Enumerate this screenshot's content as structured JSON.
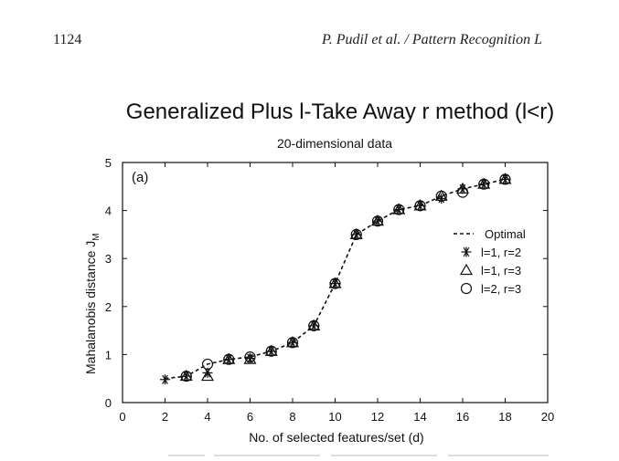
{
  "header": {
    "page_number": "1124",
    "running_title": "P. Pudil et al. / Pattern Recognition L"
  },
  "chart_data": {
    "type": "line",
    "title": "Generalized Plus l-Take Away r method (l<r)",
    "subtitle": "20-dimensional data",
    "panel_label": "(a)",
    "xlabel": "No. of selected features/set (d)",
    "ylabel": "Mahalanobis distance J",
    "ylabel_subscript": "M",
    "xlim": [
      0,
      20
    ],
    "ylim": [
      0,
      5
    ],
    "xticks": [
      0,
      2,
      4,
      6,
      8,
      10,
      12,
      14,
      16,
      18,
      20
    ],
    "yticks": [
      0,
      1,
      2,
      3,
      4,
      5
    ],
    "grid": false,
    "legend_position": "right",
    "x": [
      2,
      3,
      4,
      5,
      6,
      7,
      8,
      9,
      10,
      11,
      12,
      13,
      14,
      15,
      16,
      17,
      18
    ],
    "series": [
      {
        "name": "Optimal",
        "marker": "dashed-line",
        "values": [
          0.5,
          0.55,
          0.8,
          0.9,
          0.95,
          1.07,
          1.25,
          1.6,
          2.48,
          3.5,
          3.78,
          4.02,
          4.1,
          4.3,
          4.45,
          4.55,
          4.65
        ]
      },
      {
        "name": "l=1, r=2",
        "marker": "asterisk",
        "values": [
          0.48,
          0.55,
          0.62,
          0.9,
          0.92,
          1.07,
          1.25,
          1.6,
          2.48,
          3.5,
          3.78,
          4.02,
          4.1,
          4.25,
          4.45,
          4.55,
          4.65
        ]
      },
      {
        "name": "l=1, r=3",
        "marker": "triangle",
        "values": [
          null,
          0.55,
          0.58,
          0.9,
          0.9,
          1.07,
          1.25,
          1.6,
          2.48,
          3.5,
          3.78,
          4.02,
          4.1,
          4.3,
          4.45,
          4.55,
          4.65
        ]
      },
      {
        "name": "l=2, r=3",
        "marker": "circle",
        "values": [
          null,
          0.55,
          0.8,
          0.9,
          0.95,
          1.07,
          1.25,
          1.6,
          2.48,
          3.5,
          3.78,
          4.02,
          4.1,
          4.3,
          4.38,
          4.55,
          4.65
        ]
      }
    ]
  }
}
